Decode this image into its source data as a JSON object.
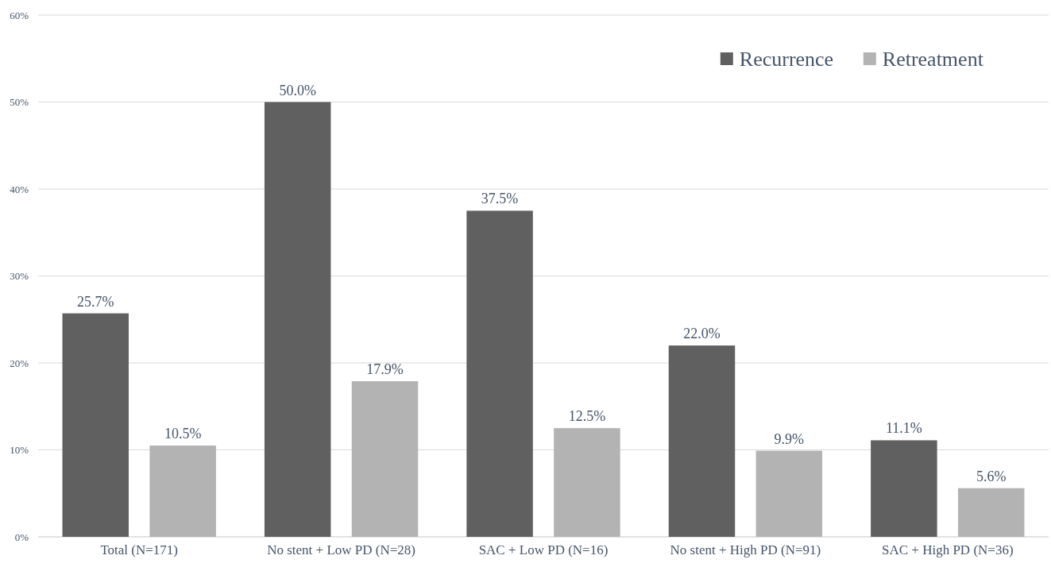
{
  "chart_data": {
    "type": "bar",
    "categories": [
      "Total (N=171)",
      "No stent + Low PD (N=28)",
      "SAC + Low PD (N=16)",
      "No stent + High PD (N=91)",
      "SAC + High PD (N=36)"
    ],
    "series": [
      {
        "name": "Recurrence",
        "color": "#606060",
        "values": [
          25.7,
          50.0,
          37.5,
          22.0,
          11.1
        ],
        "value_labels": [
          "25.7%",
          "50.0%",
          "37.5%",
          "22.0%",
          "11.1%"
        ]
      },
      {
        "name": "Retreatment",
        "color": "#b3b3b3",
        "values": [
          10.5,
          17.9,
          12.5,
          9.9,
          5.6
        ],
        "value_labels": [
          "10.5%",
          "17.9%",
          "12.5%",
          "9.9%",
          "5.6%"
        ]
      }
    ],
    "ylim": [
      0,
      60
    ],
    "yticks": [
      {
        "value": 0,
        "label": "0%"
      },
      {
        "value": 10,
        "label": "10%"
      },
      {
        "value": 20,
        "label": "20%"
      },
      {
        "value": 30,
        "label": "30%"
      },
      {
        "value": 40,
        "label": "40%"
      },
      {
        "value": 50,
        "label": "50%"
      },
      {
        "value": 60,
        "label": "60%"
      }
    ],
    "grid": "y",
    "legend": "top right"
  }
}
